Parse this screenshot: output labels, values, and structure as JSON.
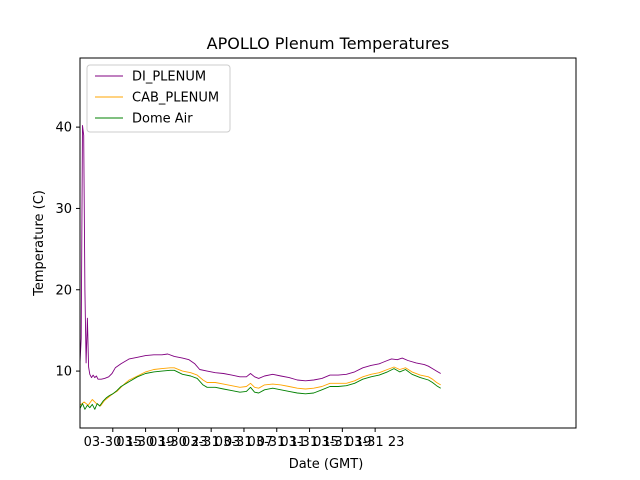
{
  "chart_data": {
    "type": "line",
    "title": "APOLLO Plenum Temperatures",
    "xlabel": "Date (GMT)",
    "ylabel": "Temperature (C)",
    "x_unit": "hours from 03-30 11:00 GMT",
    "xlim": [
      0,
      60.5
    ],
    "ylim": [
      3,
      48.5
    ],
    "x_ticks": [
      {
        "x": 4,
        "label": "03-30 15"
      },
      {
        "x": 8,
        "label": "03-30 19"
      },
      {
        "x": 12,
        "label": "03-30 23"
      },
      {
        "x": 16,
        "label": "03-31 03"
      },
      {
        "x": 20,
        "label": "03-31 07"
      },
      {
        "x": 24,
        "label": "03-31 11"
      },
      {
        "x": 28,
        "label": "03-31 15"
      },
      {
        "x": 32,
        "label": "03-31 19"
      },
      {
        "x": 36,
        "label": "03-31 23"
      }
    ],
    "y_ticks": [
      10,
      20,
      30,
      40
    ],
    "grid": false,
    "legend": "top-left",
    "series": [
      {
        "name": "DI_PLENUM",
        "color": "#800080",
        "points": [
          [
            0,
            11
          ],
          [
            0.15,
            14
          ],
          [
            0.3,
            40.2
          ],
          [
            0.45,
            39
          ],
          [
            0.6,
            20
          ],
          [
            0.75,
            11
          ],
          [
            0.9,
            16.5
          ],
          [
            1.05,
            10.5
          ],
          [
            1.2,
            9.6
          ],
          [
            1.4,
            9.2
          ],
          [
            1.6,
            9.5
          ],
          [
            1.8,
            9.2
          ],
          [
            2.0,
            9.4
          ],
          [
            2.2,
            9.0
          ],
          [
            2.6,
            9.0
          ],
          [
            3.0,
            9.1
          ],
          [
            3.5,
            9.3
          ],
          [
            3.9,
            9.7
          ],
          [
            4.3,
            10.4
          ],
          [
            5.0,
            10.9
          ],
          [
            6.0,
            11.5
          ],
          [
            7.0,
            11.7
          ],
          [
            8.0,
            11.9
          ],
          [
            9.0,
            12.0
          ],
          [
            10.0,
            12.0
          ],
          [
            10.7,
            12.1
          ],
          [
            11.5,
            11.8
          ],
          [
            12.5,
            11.6
          ],
          [
            13.3,
            11.4
          ],
          [
            14.0,
            10.9
          ],
          [
            14.6,
            10.2
          ],
          [
            15.5,
            10.0
          ],
          [
            16.5,
            9.8
          ],
          [
            17.5,
            9.7
          ],
          [
            18.5,
            9.5
          ],
          [
            19.5,
            9.3
          ],
          [
            20.3,
            9.3
          ],
          [
            20.8,
            9.7
          ],
          [
            21.3,
            9.3
          ],
          [
            21.8,
            9.1
          ],
          [
            22.5,
            9.4
          ],
          [
            23.5,
            9.6
          ],
          [
            24.5,
            9.4
          ],
          [
            25.5,
            9.2
          ],
          [
            26.5,
            8.9
          ],
          [
            27.5,
            8.8
          ],
          [
            28.5,
            8.9
          ],
          [
            29.5,
            9.1
          ],
          [
            30.5,
            9.5
          ],
          [
            31.5,
            9.5
          ],
          [
            32.5,
            9.6
          ],
          [
            33.5,
            9.9
          ],
          [
            34.5,
            10.4
          ],
          [
            35.5,
            10.7
          ],
          [
            36.5,
            10.9
          ],
          [
            37.5,
            11.3
          ],
          [
            38.0,
            11.5
          ],
          [
            38.7,
            11.4
          ],
          [
            39.3,
            11.6
          ],
          [
            40.0,
            11.3
          ],
          [
            41.0,
            11.0
          ],
          [
            42.0,
            10.8
          ],
          [
            42.5,
            10.6
          ],
          [
            43.0,
            10.3
          ],
          [
            43.5,
            10.0
          ],
          [
            44.0,
            9.7
          ]
        ]
      },
      {
        "name": "CAB_PLENUM",
        "color": "#ffa500",
        "points": [
          [
            0,
            5.8
          ],
          [
            0.5,
            6.2
          ],
          [
            1.0,
            5.8
          ],
          [
            1.5,
            6.5
          ],
          [
            2.0,
            6.0
          ],
          [
            2.5,
            5.7
          ],
          [
            3.0,
            6.4
          ],
          [
            3.5,
            6.8
          ],
          [
            4.0,
            7.2
          ],
          [
            4.5,
            7.5
          ],
          [
            5.0,
            8.0
          ],
          [
            5.5,
            8.5
          ],
          [
            6.0,
            8.9
          ],
          [
            7.0,
            9.4
          ],
          [
            8.0,
            9.9
          ],
          [
            9.0,
            10.2
          ],
          [
            10.0,
            10.3
          ],
          [
            11.0,
            10.4
          ],
          [
            11.5,
            10.4
          ],
          [
            12.5,
            10.0
          ],
          [
            13.5,
            9.8
          ],
          [
            14.3,
            9.5
          ],
          [
            15.0,
            8.9
          ],
          [
            15.5,
            8.6
          ],
          [
            16.5,
            8.6
          ],
          [
            17.5,
            8.4
          ],
          [
            18.5,
            8.2
          ],
          [
            19.5,
            8.0
          ],
          [
            20.3,
            8.1
          ],
          [
            20.8,
            8.5
          ],
          [
            21.3,
            8.0
          ],
          [
            21.8,
            7.9
          ],
          [
            22.5,
            8.3
          ],
          [
            23.5,
            8.4
          ],
          [
            24.5,
            8.3
          ],
          [
            25.5,
            8.1
          ],
          [
            26.5,
            7.9
          ],
          [
            27.5,
            7.8
          ],
          [
            28.5,
            7.9
          ],
          [
            29.5,
            8.1
          ],
          [
            30.5,
            8.5
          ],
          [
            31.5,
            8.5
          ],
          [
            32.5,
            8.5
          ],
          [
            33.5,
            8.8
          ],
          [
            34.5,
            9.3
          ],
          [
            35.5,
            9.6
          ],
          [
            36.5,
            9.8
          ],
          [
            37.5,
            10.2
          ],
          [
            38.3,
            10.5
          ],
          [
            39.0,
            10.2
          ],
          [
            39.7,
            10.4
          ],
          [
            40.5,
            9.9
          ],
          [
            41.5,
            9.5
          ],
          [
            42.5,
            9.3
          ],
          [
            43.0,
            9.0
          ],
          [
            43.5,
            8.6
          ],
          [
            44.0,
            8.3
          ]
        ]
      },
      {
        "name": "Dome Air",
        "color": "#008000",
        "points": [
          [
            0,
            5.4
          ],
          [
            0.3,
            6.0
          ],
          [
            0.6,
            5.3
          ],
          [
            0.9,
            5.8
          ],
          [
            1.2,
            5.5
          ],
          [
            1.5,
            5.9
          ],
          [
            1.8,
            5.3
          ],
          [
            2.1,
            6.0
          ],
          [
            2.4,
            5.7
          ],
          [
            2.8,
            6.3
          ],
          [
            3.2,
            6.7
          ],
          [
            3.6,
            7.0
          ],
          [
            4.0,
            7.2
          ],
          [
            4.5,
            7.6
          ],
          [
            5.0,
            8.1
          ],
          [
            5.5,
            8.4
          ],
          [
            6.0,
            8.7
          ],
          [
            7.0,
            9.3
          ],
          [
            8.0,
            9.7
          ],
          [
            9.0,
            9.9
          ],
          [
            10.0,
            10.0
          ],
          [
            11.0,
            10.1
          ],
          [
            11.5,
            10.1
          ],
          [
            12.5,
            9.6
          ],
          [
            13.5,
            9.4
          ],
          [
            14.3,
            9.1
          ],
          [
            15.0,
            8.3
          ],
          [
            15.5,
            8.0
          ],
          [
            16.5,
            8.0
          ],
          [
            17.5,
            7.8
          ],
          [
            18.5,
            7.6
          ],
          [
            19.5,
            7.4
          ],
          [
            20.3,
            7.5
          ],
          [
            20.8,
            8.0
          ],
          [
            21.3,
            7.4
          ],
          [
            21.8,
            7.3
          ],
          [
            22.5,
            7.7
          ],
          [
            23.5,
            7.9
          ],
          [
            24.5,
            7.7
          ],
          [
            25.5,
            7.5
          ],
          [
            26.5,
            7.3
          ],
          [
            27.5,
            7.2
          ],
          [
            28.5,
            7.3
          ],
          [
            29.5,
            7.7
          ],
          [
            30.5,
            8.1
          ],
          [
            31.5,
            8.1
          ],
          [
            32.5,
            8.2
          ],
          [
            33.5,
            8.5
          ],
          [
            34.5,
            9.0
          ],
          [
            35.5,
            9.3
          ],
          [
            36.5,
            9.5
          ],
          [
            37.5,
            9.9
          ],
          [
            38.3,
            10.3
          ],
          [
            39.0,
            9.9
          ],
          [
            39.7,
            10.2
          ],
          [
            40.5,
            9.6
          ],
          [
            41.5,
            9.2
          ],
          [
            42.5,
            8.9
          ],
          [
            43.0,
            8.6
          ],
          [
            43.5,
            8.2
          ],
          [
            44.0,
            7.9
          ]
        ]
      }
    ]
  }
}
